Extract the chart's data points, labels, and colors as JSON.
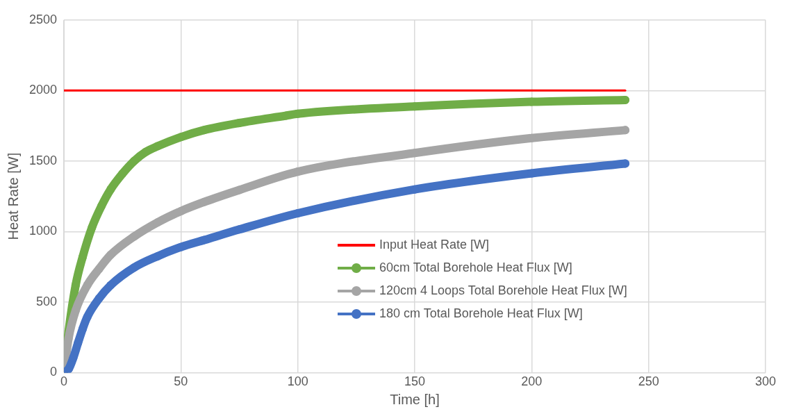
{
  "chart_data": {
    "type": "line",
    "xlabel": "Time [h]",
    "ylabel": "Heat Rate [W]",
    "xlim": [
      0,
      300
    ],
    "xticks": [
      0,
      50,
      100,
      150,
      200,
      250,
      300
    ],
    "ylim": [
      0,
      2500
    ],
    "yticks": [
      0,
      500,
      1000,
      1500,
      2000,
      2500
    ],
    "grid": true,
    "legend": "right",
    "line_style": "solid",
    "series": [
      {
        "name": "Input Heat Rate [W]",
        "color": "#ff0000",
        "marker": "none",
        "x": [
          0,
          240
        ],
        "values": [
          2000,
          2000
        ]
      },
      {
        "name": "60cm Total Borehole Heat Flux [W]",
        "color": "#70ad47",
        "marker": "circle",
        "x": [
          0,
          2,
          5,
          8,
          12,
          16,
          20,
          25,
          30,
          35,
          40,
          50,
          60,
          75,
          95,
          100,
          150,
          200,
          240
        ],
        "values": [
          0,
          295,
          620,
          820,
          1030,
          1180,
          1300,
          1410,
          1500,
          1565,
          1605,
          1670,
          1720,
          1770,
          1822,
          1835,
          1887,
          1920,
          1933
        ]
      },
      {
        "name": "120cm 4 Loops Total Borehole Heat Flux [W]",
        "color": "#a5a5a5",
        "marker": "circle",
        "x": [
          0,
          2,
          5,
          10,
          15,
          20,
          30,
          40,
          50,
          60,
          75,
          100,
          150,
          200,
          240
        ],
        "values": [
          0,
          245,
          440,
          620,
          735,
          835,
          965,
          1065,
          1145,
          1210,
          1295,
          1425,
          1557,
          1663,
          1719
        ]
      },
      {
        "name": "180 cm Total Borehole Heat Flux [W]",
        "color": "#4472c4",
        "marker": "circle",
        "x": [
          0,
          2,
          4,
          6,
          8,
          10,
          15,
          20,
          30,
          40,
          50,
          60,
          75,
          100,
          150,
          200,
          240
        ],
        "values": [
          0,
          25,
          105,
          210,
          310,
          395,
          525,
          620,
          745,
          825,
          890,
          940,
          1015,
          1130,
          1299,
          1413,
          1482
        ]
      }
    ]
  }
}
